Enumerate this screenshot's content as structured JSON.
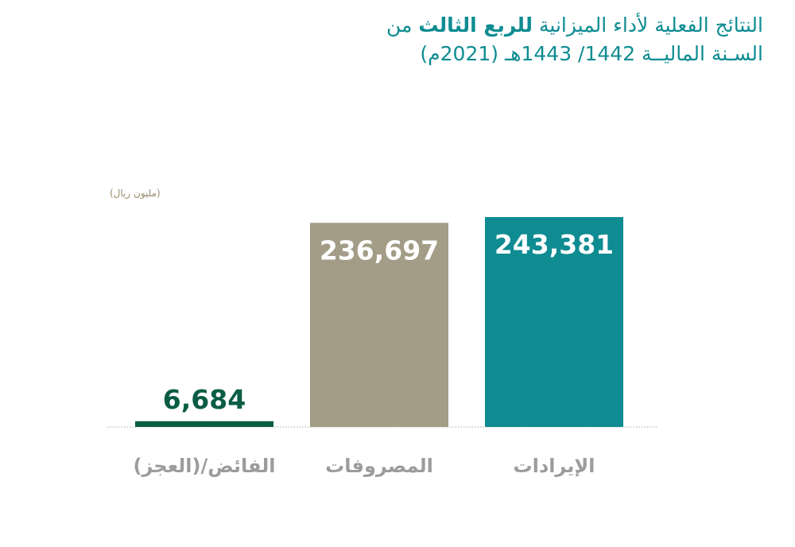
{
  "header": {
    "title_part1": "النتائج الفعلية لأداء الميزانية",
    "title_bold": "للربع الثالث",
    "title_part2": "من",
    "title_line2": "السـنة الماليــة 1442/ 1443هـ (2021م)"
  },
  "unit_label": "(مليون ريال)",
  "colors": {
    "revenue": "#0e8c92",
    "expenses": "#a39c86",
    "surplus": "#0a5c44",
    "category_text": "#9c9c9c",
    "title_text": "#0e8c92"
  },
  "chart_data": {
    "type": "bar",
    "title": "",
    "xlabel": "",
    "ylabel": "(مليون ريال)",
    "categories": [
      "الفائض/(العجز)",
      "المصروفات",
      "الإيرادات"
    ],
    "values": [
      6684,
      236697,
      243381
    ],
    "value_labels": [
      "6,684",
      "236,697",
      "243,381"
    ],
    "ylim": [
      0,
      260000
    ],
    "grid": false,
    "legend": "none"
  }
}
